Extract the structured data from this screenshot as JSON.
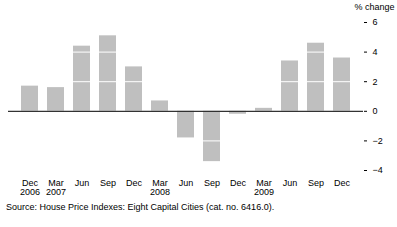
{
  "chart_data": {
    "type": "bar",
    "ylabel": "% change",
    "caption": "Source: House Price Indexes: Eight Capital Cities (cat. no. 6416.0).",
    "categories": [
      "Dec\n2006",
      "Mar\n2007",
      "Jun",
      "Sep",
      "Dec",
      "Mar\n2008",
      "Jun",
      "Sep",
      "Dec",
      "Mar\n2009",
      "Jun",
      "Sep",
      "Dec"
    ],
    "values": [
      1.7,
      1.6,
      4.4,
      5.1,
      3.0,
      0.7,
      -1.8,
      -3.4,
      -0.2,
      0.2,
      3.4,
      4.6,
      3.6
    ],
    "color": "#bfbfbf",
    "ylim": [
      -4,
      6
    ],
    "yticks": [
      -4,
      -2,
      0,
      2,
      4,
      6
    ],
    "grid": true
  }
}
